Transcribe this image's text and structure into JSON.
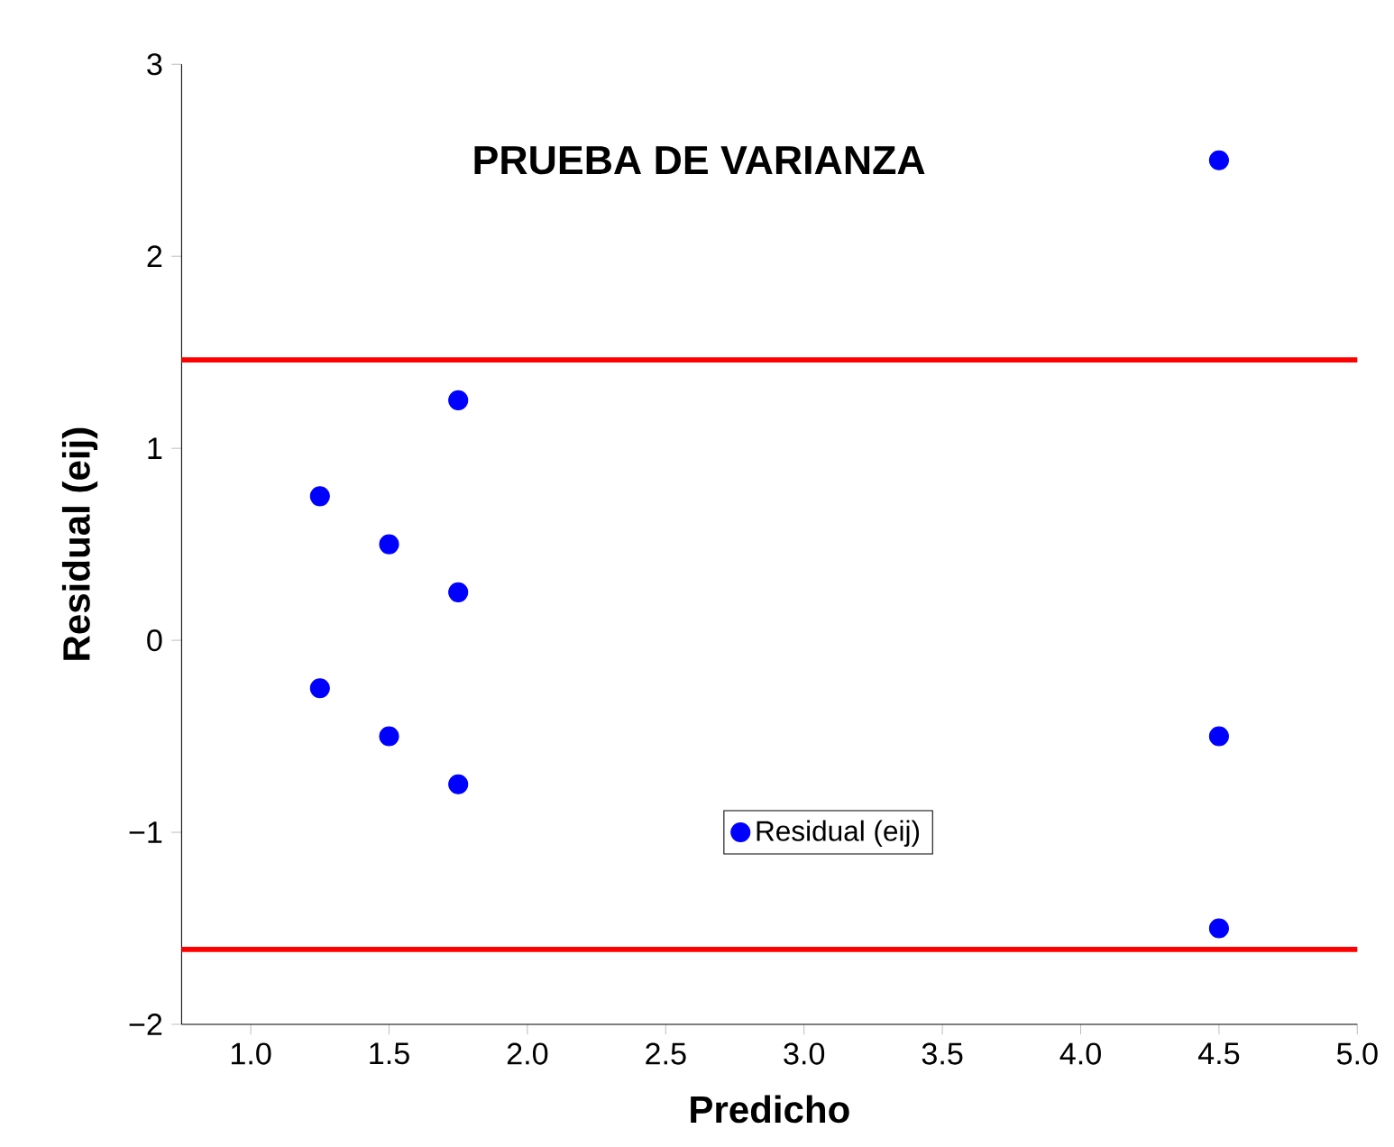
{
  "chart_data": {
    "type": "scatter",
    "title": "PRUEBA DE VARIANZA",
    "xlabel": "Predicho",
    "ylabel": "Residual (eij)",
    "x": [
      1.25,
      1.25,
      1.5,
      1.5,
      1.75,
      1.75,
      1.75,
      4.5,
      4.5,
      4.5
    ],
    "series": [
      {
        "name": "Residual (eij)",
        "color": "#0000ff",
        "values": [
          0.75,
          -0.25,
          0.5,
          -0.5,
          1.25,
          0.25,
          -0.75,
          2.5,
          -0.5,
          -1.5
        ]
      }
    ],
    "xlim": [
      0.75,
      5.0
    ],
    "ylim": [
      -2,
      3
    ],
    "xticks": [
      {
        "value": 1.0,
        "label": "1.0"
      },
      {
        "value": 1.5,
        "label": "1.5"
      },
      {
        "value": 2.0,
        "label": "2.0"
      },
      {
        "value": 2.5,
        "label": "2.5"
      },
      {
        "value": 3.0,
        "label": "3.0"
      },
      {
        "value": 3.5,
        "label": "3.5"
      },
      {
        "value": 4.0,
        "label": "4.0"
      },
      {
        "value": 4.5,
        "label": "4.5"
      },
      {
        "value": 5.0,
        "label": "5.0"
      }
    ],
    "yticks": [
      {
        "value": -2,
        "label": "−2"
      },
      {
        "value": -1,
        "label": "−1"
      },
      0,
      1,
      2,
      3
    ],
    "ref_lines": [
      {
        "axis": "y",
        "value": 1.46,
        "color": "#ff0000"
      },
      {
        "axis": "y",
        "value": -1.61,
        "color": "#ff0000"
      }
    ],
    "marker": "circle",
    "legend": "bottom",
    "grid": false
  }
}
